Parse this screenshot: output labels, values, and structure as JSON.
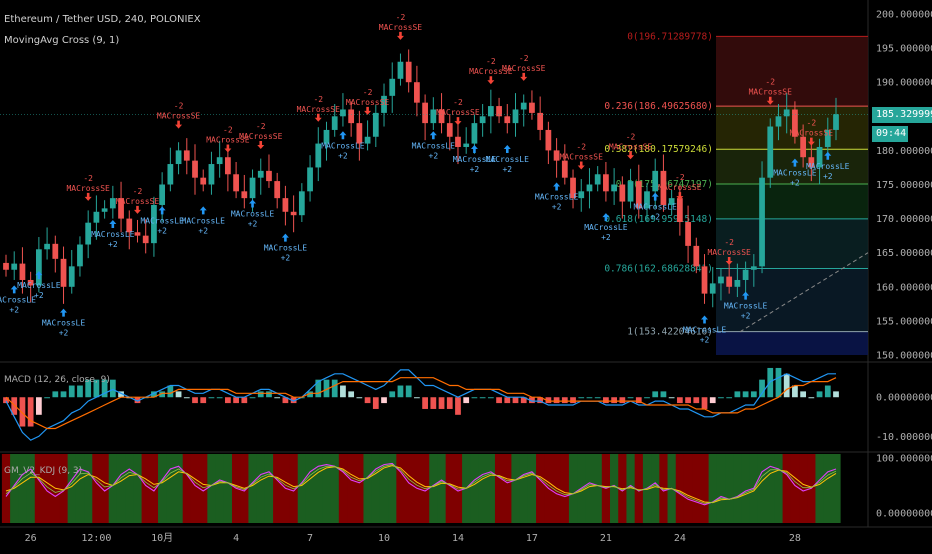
{
  "header": {
    "symbol": "Ethereum / Tether USD, 240, POLONIEX",
    "strategy": "MovingAvg Cross (9, 1)",
    "macd_label": "MACD (12, 26, close, 9)",
    "kdj_label": "GM_V2_KDJ (9, 3)"
  },
  "price_tag": "185.32999977",
  "time_tag": "09:44",
  "colors": {
    "up": "#26a69a",
    "down": "#ef5350",
    "macd": "#2196f3",
    "signal": "#ff6d00",
    "kdj_bull": "#1b5e20",
    "kdj_bear": "#7f0000"
  },
  "chart_data": [
    {
      "type": "candlestick",
      "title": "Ethereum / Tether USD, 240, POLONIEX",
      "y_ticks": [
        "200.00000000",
        "195.00000000",
        "190.00000000",
        "185.00000000",
        "180.00000000",
        "175.00000000",
        "170.00000000",
        "165.00000000",
        "160.00000000",
        "155.00000000",
        "150.00000000"
      ],
      "ylim": [
        150,
        200
      ],
      "x_ticks": [
        "26",
        "12:00",
        "10月",
        "4",
        "7",
        "10",
        "14",
        "17",
        "21",
        "24",
        "28"
      ],
      "close_series": [
        162.5,
        163.4,
        161.0,
        160.2,
        165.5,
        166.3,
        164.1,
        160.0,
        163.0,
        166.2,
        169.4,
        171.0,
        171.5,
        173.0,
        170.0,
        168.0,
        167.5,
        166.4,
        172.0,
        175.0,
        178.0,
        180.0,
        178.5,
        176.0,
        175.0,
        178.0,
        179.0,
        176.5,
        174.0,
        173.0,
        176.0,
        177.0,
        175.5,
        173.0,
        171.0,
        170.5,
        174.0,
        177.5,
        181.0,
        183.0,
        185.0,
        186.0,
        184.0,
        181.0,
        182.0,
        185.5,
        188.0,
        190.5,
        193.0,
        190.0,
        187.0,
        184.0,
        186.0,
        184.0,
        182.0,
        180.5,
        181.0,
        184.0,
        185.0,
        186.5,
        185.0,
        184.0,
        186.0,
        187.0,
        185.5,
        183.0,
        180.0,
        178.5,
        176.0,
        173.0,
        174.0,
        175.0,
        176.5,
        174.0,
        175.0,
        172.5,
        175.5,
        171.5,
        174.0,
        177.0,
        172.0,
        173.0,
        169.5,
        166.0,
        163.0,
        159.0,
        160.5,
        161.5,
        160.0,
        161.0,
        162.5,
        163.0,
        176.0,
        183.5,
        185.0,
        186.0,
        182.0,
        179.0,
        177.5,
        180.5,
        183.0,
        185.3
      ],
      "fibonacci_levels": [
        {
          "ratio": "0",
          "label": "0(196.71289778)",
          "price": 196.71289778,
          "color": "#b71c1c"
        },
        {
          "ratio": "0.236",
          "label": "0.236(186.49625680)",
          "price": 186.4962568,
          "color": "#ef5350"
        },
        {
          "ratio": "0.382",
          "label": "0.382(180.17579246)",
          "price": 180.17579246,
          "color": "#cddc39"
        },
        {
          "ratio": "0.5",
          "label": "0.5(175.06747197)",
          "price": 175.06747197,
          "color": "#4caf50"
        },
        {
          "ratio": "0.618",
          "label": "0.618(169.95915148)",
          "price": 169.95915148,
          "color": "#26a69a"
        },
        {
          "ratio": "0.786",
          "label": "0.786(162.68628841)",
          "price": 162.68628841,
          "color": "#26a69a"
        },
        {
          "ratio": "1",
          "label": "1(153.42204616)",
          "price": 153.42204616,
          "color": "#90a4ae"
        }
      ],
      "signal_labels": {
        "buy": "MACrossLE",
        "sell": "MACrossSE",
        "buy_qty": "+2",
        "sell_qty": "-2"
      },
      "signals": [
        {
          "side": "buy",
          "at": 1,
          "qty": "+2"
        },
        {
          "side": "buy",
          "at": 4,
          "qty": "+2"
        },
        {
          "side": "buy",
          "at": 7,
          "qty": "+2"
        },
        {
          "side": "sell",
          "at": 10,
          "qty": "-2"
        },
        {
          "side": "buy",
          "at": 13,
          "qty": "+2"
        },
        {
          "side": "sell",
          "at": 16,
          "qty": "-2"
        },
        {
          "side": "buy",
          "at": 19,
          "qty": "+2"
        },
        {
          "side": "sell",
          "at": 21,
          "qty": "-2"
        },
        {
          "side": "buy",
          "at": 24,
          "qty": "+2"
        },
        {
          "side": "sell",
          "at": 27,
          "qty": "-2"
        },
        {
          "side": "buy",
          "at": 30,
          "qty": "+2"
        },
        {
          "side": "sell",
          "at": 31,
          "qty": "-2"
        },
        {
          "side": "buy",
          "at": 34,
          "qty": "+2"
        },
        {
          "side": "sell",
          "at": 38,
          "qty": "-2"
        },
        {
          "side": "buy",
          "at": 41,
          "qty": "+2"
        },
        {
          "side": "sell",
          "at": 44,
          "qty": "-2"
        },
        {
          "side": "sell",
          "at": 48,
          "qty": "-2"
        },
        {
          "side": "buy",
          "at": 52,
          "qty": "+2"
        },
        {
          "side": "sell",
          "at": 55,
          "qty": "-2"
        },
        {
          "side": "buy",
          "at": 57,
          "qty": "+2"
        },
        {
          "side": "sell",
          "at": 59,
          "qty": "-2"
        },
        {
          "side": "buy",
          "at": 61,
          "qty": "+2"
        },
        {
          "side": "sell",
          "at": 63,
          "qty": "-2"
        },
        {
          "side": "buy",
          "at": 67,
          "qty": "+2"
        },
        {
          "side": "sell",
          "at": 70,
          "qty": "-2"
        },
        {
          "side": "buy",
          "at": 73,
          "qty": "+2"
        },
        {
          "side": "sell",
          "at": 76,
          "qty": "-2"
        },
        {
          "side": "buy",
          "at": 79,
          "qty": "+2"
        },
        {
          "side": "sell",
          "at": 82,
          "qty": "-2"
        },
        {
          "side": "buy",
          "at": 85,
          "qty": "+2"
        },
        {
          "side": "sell",
          "at": 88,
          "qty": "-2"
        },
        {
          "side": "buy",
          "at": 90,
          "qty": "+2"
        },
        {
          "side": "sell",
          "at": 93,
          "qty": "-2"
        },
        {
          "side": "buy",
          "at": 96,
          "qty": "+2"
        },
        {
          "side": "sell",
          "at": 98,
          "qty": "-2"
        },
        {
          "side": "buy",
          "at": 100,
          "qty": "+2"
        }
      ]
    },
    {
      "type": "line",
      "title": "MACD (12, 26, close, 9)",
      "y_ticks": [
        "0.00000000",
        "-10.00000000"
      ],
      "series": [
        {
          "name": "MACD",
          "values": [
            -1,
            -5,
            -9,
            -11,
            -10,
            -8,
            -7,
            -6,
            -4,
            -3,
            -1,
            0,
            1,
            2,
            1,
            0,
            -1,
            0,
            1,
            2,
            3,
            3,
            2,
            1,
            1,
            2,
            2,
            1,
            0,
            0,
            1,
            2,
            2,
            1,
            0,
            -1,
            0,
            2,
            4,
            5,
            6,
            6,
            5,
            4,
            3,
            2,
            3,
            5,
            7,
            7,
            5,
            3,
            3,
            2,
            1,
            0,
            1,
            2,
            2,
            2,
            1,
            0,
            0,
            0,
            -1,
            -1,
            -2,
            -2,
            -2,
            -2,
            -1,
            -1,
            -1,
            -2,
            -2,
            -2,
            -1,
            -2,
            -2,
            -1,
            -1,
            -2,
            -3,
            -3,
            -4,
            -5,
            -5,
            -4,
            -4,
            -3,
            -2,
            -2,
            1,
            4,
            5,
            6,
            5,
            4,
            4,
            5,
            6,
            6
          ]
        },
        {
          "name": "Signal",
          "values": [
            0,
            -2,
            -4,
            -6,
            -7,
            -8,
            -8,
            -7,
            -6,
            -5,
            -4,
            -3,
            -2,
            -1,
            0,
            0,
            0,
            0,
            0,
            1,
            1,
            2,
            2,
            2,
            2,
            2,
            2,
            2,
            1,
            1,
            1,
            1,
            1,
            1,
            1,
            0,
            0,
            1,
            1,
            2,
            3,
            4,
            4,
            4,
            4,
            4,
            4,
            4,
            5,
            5,
            5,
            5,
            5,
            4,
            3,
            3,
            2,
            2,
            2,
            2,
            2,
            1,
            1,
            1,
            0,
            0,
            -1,
            -1,
            -1,
            -1,
            -1,
            -1,
            -1,
            -1,
            -1,
            -1,
            -1,
            -1,
            -2,
            -2,
            -2,
            -2,
            -2,
            -2,
            -3,
            -3,
            -4,
            -4,
            -4,
            -4,
            -3,
            -3,
            -2,
            -1,
            0,
            2,
            3,
            3,
            4,
            4,
            4,
            5
          ]
        }
      ]
    },
    {
      "type": "line",
      "title": "GM_V2_KDJ (9, 3)",
      "y_ticks": [
        "100.00000000",
        "0.00000000"
      ],
      "ylim": [
        0,
        100
      ],
      "series": [
        {
          "name": "K",
          "values": [
            30,
            50,
            70,
            80,
            60,
            40,
            30,
            40,
            60,
            80,
            75,
            55,
            40,
            50,
            70,
            80,
            70,
            50,
            40,
            60,
            80,
            85,
            70,
            50,
            40,
            50,
            60,
            55,
            45,
            40,
            55,
            70,
            75,
            60,
            45,
            40,
            55,
            75,
            85,
            88,
            85,
            75,
            60,
            55,
            65,
            80,
            88,
            90,
            75,
            55,
            45,
            40,
            50,
            60,
            50,
            40,
            45,
            60,
            70,
            75,
            65,
            55,
            60,
            70,
            75,
            60,
            45,
            35,
            30,
            35,
            45,
            55,
            50,
            45,
            50,
            40,
            50,
            40,
            45,
            55,
            40,
            45,
            35,
            25,
            20,
            15,
            20,
            30,
            25,
            30,
            40,
            45,
            75,
            85,
            80,
            70,
            50,
            40,
            45,
            60,
            75,
            80
          ]
        },
        {
          "name": "D",
          "values": [
            40,
            45,
            55,
            65,
            65,
            55,
            45,
            42,
            48,
            62,
            70,
            65,
            55,
            50,
            58,
            68,
            70,
            62,
            52,
            55,
            65,
            75,
            72,
            62,
            52,
            50,
            55,
            55,
            50,
            45,
            50,
            60,
            67,
            65,
            56,
            48,
            50,
            62,
            74,
            82,
            84,
            80,
            70,
            62,
            63,
            72,
            82,
            86,
            82,
            68,
            56,
            48,
            48,
            54,
            53,
            47,
            45,
            52,
            62,
            69,
            68,
            62,
            60,
            65,
            70,
            66,
            56,
            45,
            37,
            35,
            40,
            48,
            50,
            48,
            48,
            44,
            46,
            42,
            43,
            48,
            45,
            44,
            40,
            32,
            26,
            20,
            19,
            24,
            25,
            28,
            34,
            40,
            58,
            72,
            78,
            76,
            64,
            52,
            47,
            52,
            63,
            72
          ]
        }
      ]
    }
  ]
}
